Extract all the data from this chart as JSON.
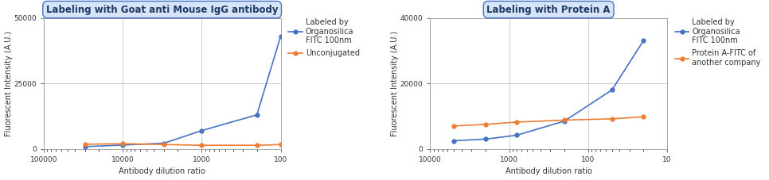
{
  "chart1": {
    "title": "Labeling with Goat anti Mouse IgG antibody",
    "xlabel": "Antibody dilution ratio",
    "ylabel": "Fluorescent Intensity (A.U.)",
    "ylim": [
      0,
      50000
    ],
    "yticks": [
      0,
      25000,
      50000
    ],
    "xlim_high": 100000,
    "xlim_low": 100,
    "blue_x": [
      30000,
      10000,
      3000,
      1000,
      200,
      100
    ],
    "blue_y": [
      900,
      1500,
      2200,
      7000,
      13000,
      43000
    ],
    "orange_x": [
      30000,
      10000,
      3000,
      1000,
      200,
      100
    ],
    "orange_y": [
      1800,
      2000,
      1700,
      1400,
      1400,
      1700
    ],
    "legend1": "Labeled by\nOrganosilica\nFITC 100nm",
    "legend2": "Unconjugated",
    "blue_color": "#4472C4",
    "orange_color": "#ED7D31"
  },
  "chart2": {
    "title": "Labeling with Protein A",
    "xlabel": "Antibody dilution ratio",
    "ylabel": "Fluorescent Intensity (A.U.)",
    "ylim": [
      0,
      40000
    ],
    "yticks": [
      0,
      20000,
      40000
    ],
    "xlim_high": 10000,
    "xlim_low": 10,
    "blue_x": [
      5000,
      2000,
      800,
      200,
      50,
      20
    ],
    "blue_y": [
      2500,
      3000,
      4200,
      8500,
      18000,
      33000
    ],
    "orange_x": [
      5000,
      2000,
      800,
      200,
      50,
      20
    ],
    "orange_y": [
      7000,
      7500,
      8200,
      8800,
      9200,
      9800
    ],
    "legend1": "Labeled by\nOrganosilica\nFITC 100nm",
    "legend2": "Protein A-FITC of\nanother company",
    "blue_color": "#4472C4",
    "orange_color": "#ED7D31"
  },
  "title_fontsize": 8.5,
  "axis_label_fontsize": 7,
  "tick_fontsize": 6.5,
  "legend_fontsize": 7,
  "title_color": "#1F3864",
  "title_bg": "#D6E4F7",
  "title_border": "#4472C4",
  "grid_color": "#C0C0C0",
  "background_color": "#FFFFFF"
}
